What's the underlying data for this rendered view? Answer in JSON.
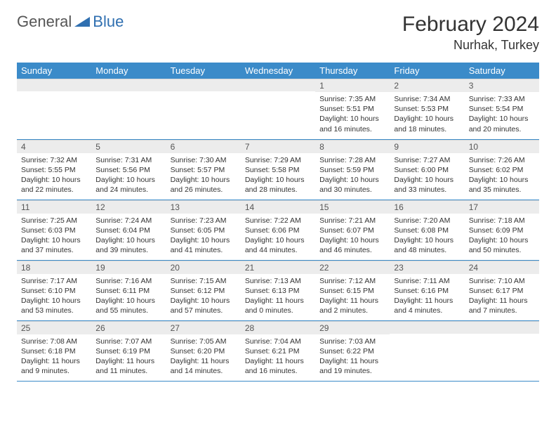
{
  "logo": {
    "part1": "General",
    "part2": "Blue"
  },
  "title": "February 2024",
  "location": "Nurhak, Turkey",
  "colors": {
    "header_bg": "#3b8bc9",
    "header_text": "#ffffff",
    "daynum_bg": "#ececec",
    "row_divider": "#3b8bc9",
    "logo_blue": "#2f6fb0"
  },
  "weekdays": [
    "Sunday",
    "Monday",
    "Tuesday",
    "Wednesday",
    "Thursday",
    "Friday",
    "Saturday"
  ],
  "grid": {
    "first_weekday_index": 4,
    "days_in_month": 29,
    "rows": 5,
    "cols": 7
  },
  "days": {
    "1": {
      "sunrise": "7:35 AM",
      "sunset": "5:51 PM",
      "daylight": "10 hours and 16 minutes."
    },
    "2": {
      "sunrise": "7:34 AM",
      "sunset": "5:53 PM",
      "daylight": "10 hours and 18 minutes."
    },
    "3": {
      "sunrise": "7:33 AM",
      "sunset": "5:54 PM",
      "daylight": "10 hours and 20 minutes."
    },
    "4": {
      "sunrise": "7:32 AM",
      "sunset": "5:55 PM",
      "daylight": "10 hours and 22 minutes."
    },
    "5": {
      "sunrise": "7:31 AM",
      "sunset": "5:56 PM",
      "daylight": "10 hours and 24 minutes."
    },
    "6": {
      "sunrise": "7:30 AM",
      "sunset": "5:57 PM",
      "daylight": "10 hours and 26 minutes."
    },
    "7": {
      "sunrise": "7:29 AM",
      "sunset": "5:58 PM",
      "daylight": "10 hours and 28 minutes."
    },
    "8": {
      "sunrise": "7:28 AM",
      "sunset": "5:59 PM",
      "daylight": "10 hours and 30 minutes."
    },
    "9": {
      "sunrise": "7:27 AM",
      "sunset": "6:00 PM",
      "daylight": "10 hours and 33 minutes."
    },
    "10": {
      "sunrise": "7:26 AM",
      "sunset": "6:02 PM",
      "daylight": "10 hours and 35 minutes."
    },
    "11": {
      "sunrise": "7:25 AM",
      "sunset": "6:03 PM",
      "daylight": "10 hours and 37 minutes."
    },
    "12": {
      "sunrise": "7:24 AM",
      "sunset": "6:04 PM",
      "daylight": "10 hours and 39 minutes."
    },
    "13": {
      "sunrise": "7:23 AM",
      "sunset": "6:05 PM",
      "daylight": "10 hours and 41 minutes."
    },
    "14": {
      "sunrise": "7:22 AM",
      "sunset": "6:06 PM",
      "daylight": "10 hours and 44 minutes."
    },
    "15": {
      "sunrise": "7:21 AM",
      "sunset": "6:07 PM",
      "daylight": "10 hours and 46 minutes."
    },
    "16": {
      "sunrise": "7:20 AM",
      "sunset": "6:08 PM",
      "daylight": "10 hours and 48 minutes."
    },
    "17": {
      "sunrise": "7:18 AM",
      "sunset": "6:09 PM",
      "daylight": "10 hours and 50 minutes."
    },
    "18": {
      "sunrise": "7:17 AM",
      "sunset": "6:10 PM",
      "daylight": "10 hours and 53 minutes."
    },
    "19": {
      "sunrise": "7:16 AM",
      "sunset": "6:11 PM",
      "daylight": "10 hours and 55 minutes."
    },
    "20": {
      "sunrise": "7:15 AM",
      "sunset": "6:12 PM",
      "daylight": "10 hours and 57 minutes."
    },
    "21": {
      "sunrise": "7:13 AM",
      "sunset": "6:13 PM",
      "daylight": "11 hours and 0 minutes."
    },
    "22": {
      "sunrise": "7:12 AM",
      "sunset": "6:15 PM",
      "daylight": "11 hours and 2 minutes."
    },
    "23": {
      "sunrise": "7:11 AM",
      "sunset": "6:16 PM",
      "daylight": "11 hours and 4 minutes."
    },
    "24": {
      "sunrise": "7:10 AM",
      "sunset": "6:17 PM",
      "daylight": "11 hours and 7 minutes."
    },
    "25": {
      "sunrise": "7:08 AM",
      "sunset": "6:18 PM",
      "daylight": "11 hours and 9 minutes."
    },
    "26": {
      "sunrise": "7:07 AM",
      "sunset": "6:19 PM",
      "daylight": "11 hours and 11 minutes."
    },
    "27": {
      "sunrise": "7:05 AM",
      "sunset": "6:20 PM",
      "daylight": "11 hours and 14 minutes."
    },
    "28": {
      "sunrise": "7:04 AM",
      "sunset": "6:21 PM",
      "daylight": "11 hours and 16 minutes."
    },
    "29": {
      "sunrise": "7:03 AM",
      "sunset": "6:22 PM",
      "daylight": "11 hours and 19 minutes."
    }
  },
  "labels": {
    "sunrise_prefix": "Sunrise: ",
    "sunset_prefix": "Sunset: ",
    "daylight_prefix": "Daylight: "
  }
}
